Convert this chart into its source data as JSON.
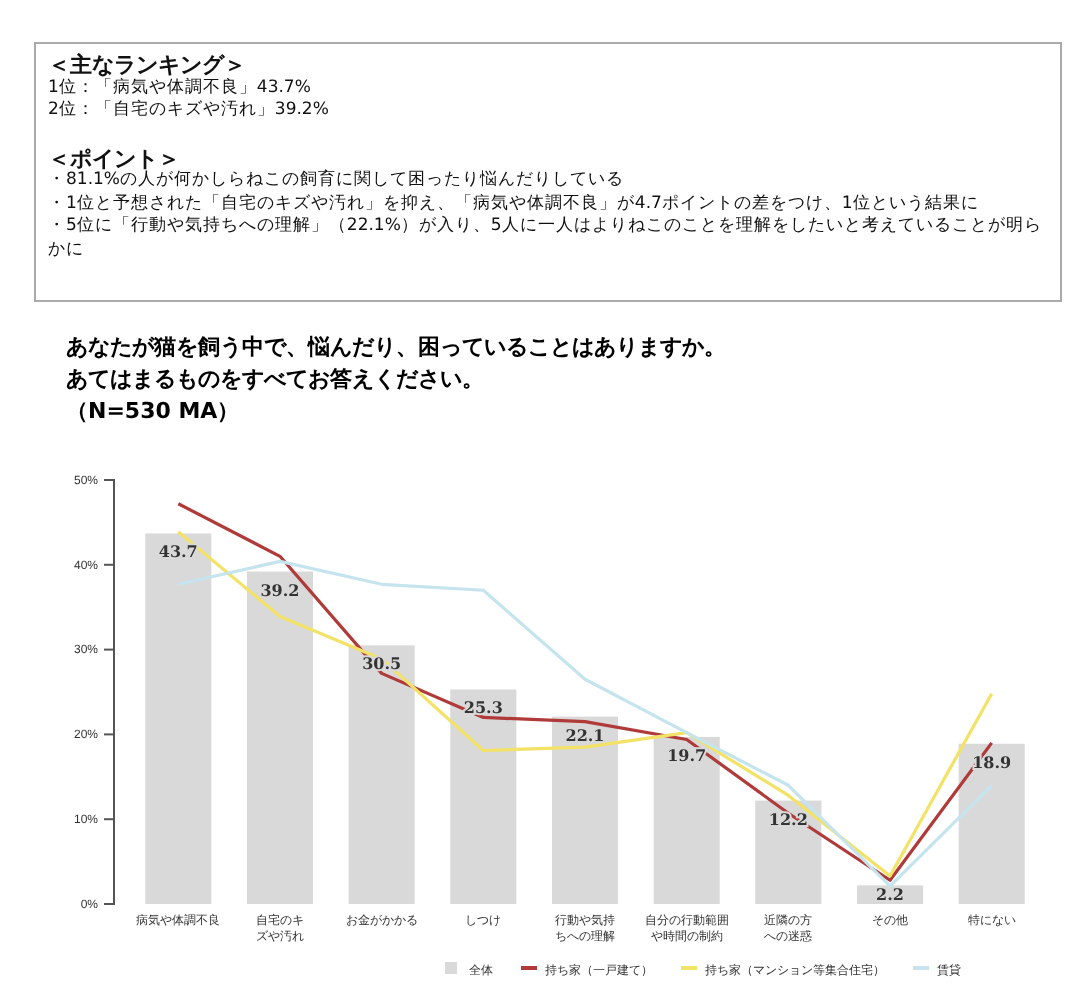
{
  "chart_data": {
    "type": "bar",
    "title": "あなたが猫を飼う中で、悩んだり、困っていることはありますか。",
    "subtitle": "あてはまるものをすべてお答えください。",
    "annotations": [
      "＜主なランキング＞",
      "1位：「病気や体調不良」43.7%",
      "2位：「自宅のキズや汚れ」39.2%",
      "＜ポイント＞",
      "・81.1%の人が何かしらねこの飼育に関して困ったり悩んだりしている",
      "・1位と予想された「自宅のキズや汚れ」を抑え、「病気や体調不良」が4.7ポイントの差をつけ、1位という結果に",
      "・5位に「行動や気持ちへの理解」（22.1%）が入り、5人に一人はよりねこのことを理解をしたいと考えていることが明らかに",
      "（N=530 MA）"
    ],
    "categories": [
      "病気や体調不良",
      "自宅のキズや汚れ",
      "お金がかかる",
      "しつけ",
      "行動や気持ちへの理解",
      "自分の行動範囲や時間の制約",
      "近隣の方への迷惑",
      "その他",
      "特にない"
    ],
    "series": [
      {
        "name": "全体",
        "color": "#d9d9d9",
        "values": [
          43.7,
          39.2,
          30.5,
          25.3,
          22.1,
          19.7,
          12.2,
          2.2,
          18.9
        ],
        "value_labels": [
          "43.7",
          "39.2",
          "30.5",
          "25.3",
          "22.1",
          "19.7",
          "12.2",
          "2.2",
          "18.9"
        ]
      },
      {
        "name": "持ち家（一戸建て）",
        "type": "line",
        "color": "#b03a3a",
        "values": [
          47.2,
          41.0,
          27.2,
          22.0,
          21.5,
          19.4,
          10.7,
          2.8,
          19.0
        ]
      },
      {
        "name": "持ち家（マンション等集合住宅）",
        "type": "line",
        "color": "#f2e266",
        "values": [
          43.9,
          33.9,
          28.9,
          18.1,
          18.5,
          20.2,
          12.8,
          3.3,
          24.8
        ]
      },
      {
        "name": "賃貸",
        "type": "line",
        "color": "#c5e4ee",
        "values": [
          37.7,
          40.4,
          37.7,
          37.0,
          26.5,
          20.2,
          14.0,
          2.1,
          14.0
        ]
      }
    ],
    "ylim": [
      0,
      50
    ],
    "yticks": [
      {
        "value": 0,
        "label": "0%"
      },
      {
        "value": 10,
        "label": "10%"
      },
      {
        "value": 20,
        "label": "20%"
      },
      {
        "value": 30,
        "label": "30%"
      },
      {
        "value": 40,
        "label": "40%"
      },
      {
        "value": 50,
        "label": "50%"
      }
    ],
    "legend": "bottom",
    "grid": false,
    "marker": "none",
    "line_style": "solid"
  }
}
